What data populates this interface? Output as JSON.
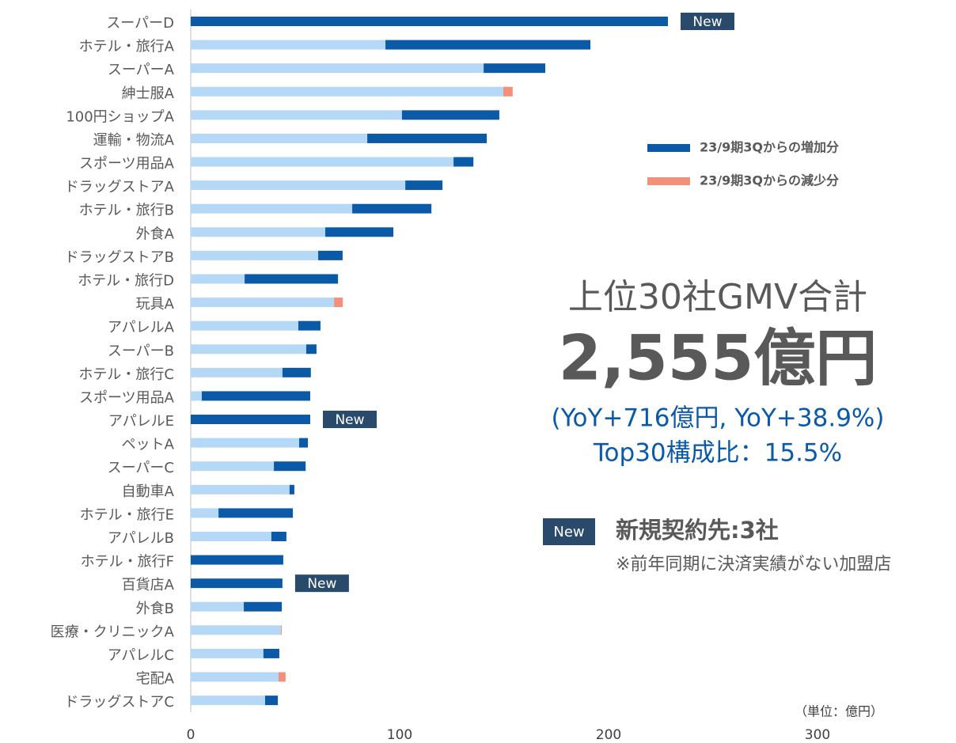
{
  "chart_data": {
    "type": "stacked_barh",
    "categories": [
      "スーパーD",
      "ホテル・旅行A",
      "スーパーA",
      "紳士服A",
      "100円ショップA",
      "運輸・物流A",
      "スポーツ用品A",
      "ドラッグストアA",
      "ホテル・旅行B",
      "外食A",
      "ドラッグストアB",
      "ホテル・旅行D",
      "玩具A",
      "アパレルA",
      "スーパーB",
      "ホテル・旅行C",
      "スポーツ用品A",
      "アパレルE",
      "ペットA",
      "スーパーC",
      "自動車A",
      "ホテル・旅行E",
      "アパレルB",
      "ホテル・旅行F",
      "百貨店A",
      "外食B",
      "医療・クリニックA",
      "アパレルC",
      "宅配A",
      "ドラッグストアC"
    ],
    "series": [
      {
        "color": "#b4d8f5",
        "values": [
          0,
          93.2,
          140.2,
          149.6,
          101.1,
          84.5,
          125.8,
          102.7,
          77.3,
          64.4,
          61.0,
          25.8,
          68.6,
          51.5,
          55.3,
          43.9,
          5.3,
          0,
          51.9,
          39.8,
          47.3,
          13.3,
          38.6,
          0,
          0,
          25.4,
          43.2,
          34.8,
          42.0,
          35.6
        ]
      },
      {
        "name": "23/9期3Qからの増加分",
        "color": "#0a5aa8",
        "values": [
          228.4,
          98.1,
          29.5,
          0,
          46.6,
          57.2,
          9.5,
          17.8,
          37.9,
          32.6,
          11.7,
          44.7,
          0,
          10.6,
          4.9,
          13.6,
          51.9,
          57.2,
          4.2,
          15.2,
          2.3,
          35.6,
          7.2,
          44.3,
          43.9,
          18.2,
          0,
          7.6,
          0,
          6.1
        ]
      },
      {
        "name": "23/9期3Qからの減少分",
        "color": "#f4907a",
        "values": [
          0,
          0,
          0,
          4.5,
          0,
          0,
          0,
          0,
          0,
          0,
          0,
          0,
          4.2,
          0,
          0,
          0,
          0,
          0,
          0,
          0,
          0,
          0,
          0,
          0,
          0,
          0,
          0.4,
          0,
          3.4,
          0
        ]
      }
    ],
    "xlim": [
      0,
      350
    ],
    "xticks": [
      0,
      100,
      200,
      300
    ],
    "new_badges": [
      {
        "index": 0,
        "label": "New"
      },
      {
        "index": 17,
        "label": "New"
      },
      {
        "index": 24,
        "label": "New"
      }
    ],
    "headline": "上位30社GMV合計",
    "total": "2,555億円",
    "yoy": "(YoY+716億円, YoY+38.9%)",
    "share": "Top30構成比：15.5%",
    "new_note_badge": "New",
    "new_note": "新規契約先:3社",
    "new_note_sub": "※前年同期に決済実績がない加盟店",
    "unit": "（単位：億円）"
  }
}
